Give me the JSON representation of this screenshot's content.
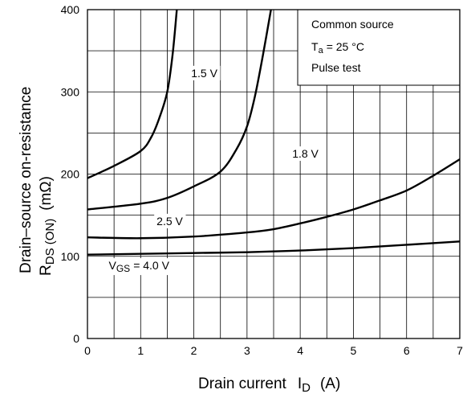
{
  "chart_data": {
    "type": "line",
    "title": "",
    "xlabel": {
      "main": "Drain current",
      "symbol": "I",
      "subscript": "D",
      "unit": "(A)"
    },
    "ylabel": {
      "line1": "Drain–source on-resistance",
      "symbol": "R",
      "subscript": "DS (ON)",
      "unit": "(mΩ)"
    },
    "xlim": [
      0,
      7
    ],
    "ylim": [
      0,
      400
    ],
    "x_ticks": [
      "0",
      "1",
      "2",
      "3",
      "4",
      "5",
      "6",
      "7"
    ],
    "y_ticks": [
      "0",
      "100",
      "200",
      "300",
      "400"
    ],
    "x_minor_step": 0.5,
    "y_minor_step": 50,
    "grid": true,
    "conditions": {
      "line1": "Common source",
      "line2_symbol": "T",
      "line2_subscript": "a",
      "line2_value": "= 25 °C",
      "line3": "Pulse test"
    },
    "series": [
      {
        "label": "1.5 V",
        "points": [
          [
            0,
            195
          ],
          [
            0.5,
            210
          ],
          [
            1.0,
            228
          ],
          [
            1.2,
            245
          ],
          [
            1.35,
            268
          ],
          [
            1.5,
            300
          ],
          [
            1.6,
            345
          ],
          [
            1.68,
            400
          ]
        ],
        "label_pos": [
          1.95,
          318
        ]
      },
      {
        "label": "1.8 V",
        "points": [
          [
            0,
            157
          ],
          [
            1.0,
            164
          ],
          [
            1.5,
            171
          ],
          [
            2.0,
            185
          ],
          [
            2.5,
            203
          ],
          [
            2.8,
            230
          ],
          [
            3.0,
            258
          ],
          [
            3.15,
            295
          ],
          [
            3.3,
            345
          ],
          [
            3.45,
            400
          ]
        ],
        "label_pos": [
          3.85,
          220
        ]
      },
      {
        "label": "2.5 V",
        "points": [
          [
            0,
            123
          ],
          [
            1.0,
            122
          ],
          [
            2.0,
            124
          ],
          [
            3.0,
            129
          ],
          [
            3.5,
            133
          ],
          [
            4.0,
            140
          ],
          [
            4.5,
            148
          ],
          [
            5.0,
            157
          ],
          [
            5.5,
            168
          ],
          [
            6.0,
            180
          ],
          [
            6.5,
            198
          ],
          [
            7.0,
            218
          ]
        ],
        "label_pos": [
          1.3,
          138
        ]
      },
      {
        "label_prefix": "V",
        "label_sub": "GS",
        "label": "= 4.0 V",
        "points": [
          [
            0,
            102
          ],
          [
            1.0,
            103
          ],
          [
            2.0,
            104
          ],
          [
            3.0,
            105
          ],
          [
            4.0,
            107
          ],
          [
            5.0,
            110
          ],
          [
            6.0,
            114
          ],
          [
            7.0,
            118
          ]
        ],
        "label_pos": [
          0.4,
          84
        ]
      }
    ]
  }
}
